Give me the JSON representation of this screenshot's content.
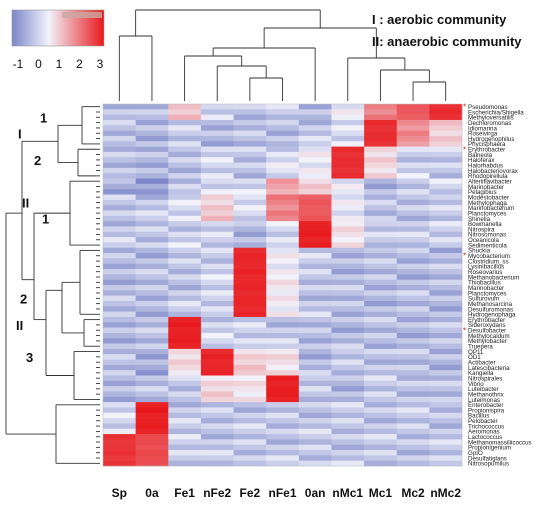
{
  "legend_text": {
    "line1": "I : aerobic community",
    "line2": "II: anaerobic community"
  },
  "colors": {
    "low": "#7b86c8",
    "mid": "#f2f3fb",
    "high": "#e8191c",
    "dendrogram": "#333333",
    "marker": "#d0241e"
  },
  "chart_data": {
    "type": "heatmap",
    "title": "",
    "xlabel": "",
    "ylabel": "",
    "color_scale": {
      "range": [
        -1,
        3
      ],
      "ticks": [
        "-1",
        "0",
        "1",
        "2",
        "3"
      ],
      "colors": [
        "#7b86c8",
        "#f2f3fb",
        "#e8191c"
      ]
    },
    "columns": [
      "Sp",
      "0a",
      "Fe1",
      "nFe2",
      "Fe2",
      "nFe1",
      "0an",
      "nMc1",
      "Mc1",
      "Mc2",
      "nMc2"
    ],
    "rows": [
      "Pseudomonas",
      "Escherichia/Shigella",
      "Methyloversatilis",
      "Dechloromonas",
      "Idiomarina",
      "Roseivirga",
      "Hydrogenophilus",
      "Phycisphaera",
      "Erythrobacter",
      "Balneola",
      "Haloferax",
      "Halorhabdus",
      "Halobacteriovorax",
      "Rhodopirellula",
      "Alteriiflavibacter",
      "Marinobacter",
      "Pelagibius",
      "Modestobacter",
      "Methylophaga",
      "Marinobacterium",
      "Planctomyces",
      "Shinella",
      "Bowmanella",
      "Nitrospira",
      "Nitrosomonas",
      "Oceanicola",
      "Sedimenticola",
      "Shuckia",
      "Mycobacterium",
      "Clostridium_ss",
      "Lysinibacillus",
      "Roseovarius",
      "Methanobacterium",
      "Thiobacillus",
      "Marinobacter",
      "Planctomyces",
      "Sulfurovum",
      "Methanosarcina",
      "Desulfuromonas",
      "Hydrogenophaga",
      "Erythrobacter",
      "Sideroxydans",
      "Desulfobacter",
      "Methylocaldum",
      "Methylobacter",
      "Truepera",
      "OP11",
      "OD1",
      "Actibacter",
      "Latescibacteria",
      "Kangiella",
      "Nitrospirales",
      "Vibrio",
      "Luteibacter",
      "Methanothrix",
      "Luteimonas",
      "Enterobacter",
      "Propionispira",
      "Bacillus",
      "Pelobacter",
      "Trichococcus",
      "Aeromonas",
      "Lactococcus",
      "Methanomassiliicoccus",
      "Propionigenium",
      "GpIO",
      "Desulfatiglans",
      "Nitrosopumilus"
    ],
    "marked_rows": [
      0,
      8,
      28,
      42
    ],
    "row_cluster_labels": [
      {
        "label": "1",
        "row": 2
      },
      {
        "label": "I",
        "row": 5
      },
      {
        "label": "2",
        "row": 10
      },
      {
        "label": "II",
        "row": 18
      },
      {
        "label": "1",
        "row": 21
      },
      {
        "label": "2",
        "row": 36
      },
      {
        "label": "II",
        "row": 41
      },
      {
        "label": "3",
        "row": 47
      }
    ],
    "blocks": [
      {
        "rows": [
          0,
          2
        ],
        "values": [
          -0.4,
          -0.5,
          0.8,
          -0.3,
          -0.4,
          -0.4,
          -0.5,
          -0.1,
          1.6,
          2.2,
          2.8
        ]
      },
      {
        "rows": [
          3,
          7
        ],
        "values": [
          -0.5,
          -0.5,
          -0.4,
          -0.5,
          -0.5,
          -0.5,
          -0.4,
          -0.2,
          2.8,
          1.4,
          0.6
        ]
      },
      {
        "rows": [
          8,
          13
        ],
        "values": [
          -0.4,
          -0.6,
          -0.4,
          -0.3,
          -0.4,
          -0.2,
          0.0,
          2.8,
          0.4,
          -0.3,
          -0.4
        ]
      },
      {
        "rows": [
          14,
          16
        ],
        "values": [
          -0.7,
          -0.8,
          -0.5,
          -0.2,
          -0.3,
          1.1,
          0.6,
          -0.1,
          -0.5,
          -0.4,
          -0.2
        ]
      },
      {
        "rows": [
          17,
          21
        ],
        "values": [
          -0.4,
          -0.4,
          -0.2,
          0.6,
          -0.2,
          1.6,
          2.2,
          0.0,
          -0.5,
          -0.4,
          -0.4
        ]
      },
      {
        "rows": [
          22,
          26
        ],
        "values": [
          -0.4,
          -0.4,
          -0.3,
          -0.3,
          -0.5,
          -0.3,
          3.0,
          0.2,
          -0.3,
          -0.4,
          -0.3
        ]
      },
      {
        "rows": [
          27,
          39
        ],
        "values": [
          -0.5,
          -0.5,
          -0.4,
          -0.3,
          2.9,
          0.1,
          -0.4,
          -0.5,
          -0.5,
          -0.5,
          -0.5
        ]
      },
      {
        "rows": [
          40,
          45
        ],
        "values": [
          -0.5,
          -0.5,
          3.0,
          -0.3,
          -0.3,
          -0.4,
          -0.5,
          -0.5,
          -0.5,
          -0.5,
          -0.5
        ]
      },
      {
        "rows": [
          46,
          50
        ],
        "values": [
          -0.5,
          -0.6,
          0.3,
          2.9,
          0.5,
          0.3,
          -0.5,
          -0.4,
          -0.4,
          -0.5,
          -0.5
        ]
      },
      {
        "rows": [
          51,
          55
        ],
        "values": [
          -0.5,
          -0.5,
          -0.4,
          0.4,
          0.2,
          3.0,
          -0.4,
          -0.5,
          -0.4,
          -0.4,
          -0.5
        ]
      },
      {
        "rows": [
          56,
          61
        ],
        "values": [
          -0.3,
          3.0,
          -0.4,
          -0.4,
          -0.4,
          -0.4,
          -0.4,
          -0.4,
          -0.4,
          -0.4,
          -0.4
        ]
      },
      {
        "rows": [
          62,
          67
        ],
        "values": [
          2.7,
          2.4,
          -0.3,
          -0.4,
          -0.4,
          -0.4,
          -0.4,
          -0.4,
          -0.4,
          -0.4,
          -0.4
        ]
      }
    ]
  }
}
